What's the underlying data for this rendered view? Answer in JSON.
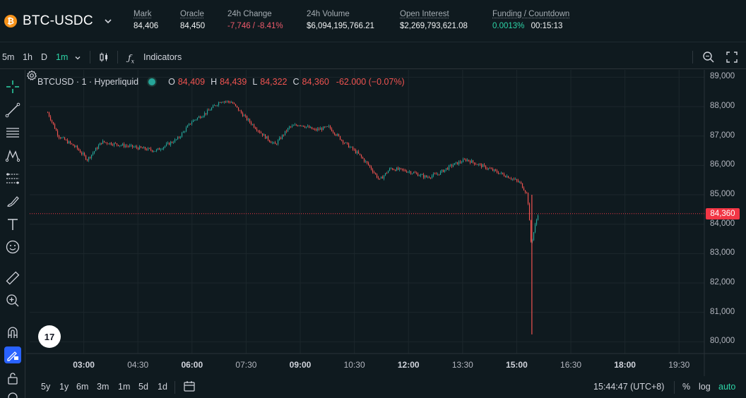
{
  "market": {
    "pair": "BTC-USDC",
    "coin_symbol": "₿",
    "stats": [
      {
        "label": "Mark",
        "value": "84,406"
      },
      {
        "label": "Oracle",
        "value": "84,450"
      },
      {
        "label": "24h Change",
        "value": "-7,746 / -8.41%"
      },
      {
        "label": "24h Volume",
        "value": "$6,094,195,766.21"
      },
      {
        "label": "Open Interest",
        "value": "$2,269,793,621.08"
      },
      {
        "label": "Funding / Countdown",
        "value": "0.0013%",
        "value2": "00:15:13"
      }
    ]
  },
  "toolbar": {
    "intervals": [
      "5m",
      "1h",
      "D",
      "1m"
    ],
    "active_interval": "1m",
    "indicators_label": "Indicators"
  },
  "legend": {
    "symbol": "BTCUSD · 1 · Hyperliquid",
    "o_key": "O",
    "o": "84,409",
    "h_key": "H",
    "h": "84,439",
    "l_key": "L",
    "l": "84,322",
    "c_key": "C",
    "c": "84,360",
    "change": "-62.000 (−0.07%)"
  },
  "chart_data": {
    "type": "candlestick",
    "title": "BTCUSD · 1 · Hyperliquid",
    "current_price_label": "84,360",
    "current_price": 84360,
    "ylim": [
      79600,
      89250
    ],
    "y_ticks": [
      "89,000",
      "88,000",
      "87,000",
      "86,000",
      "85,000",
      "84,000",
      "83,000",
      "82,000",
      "81,000",
      "80,000"
    ],
    "x_ticks": [
      {
        "label": "03:00",
        "bold": true,
        "hour": 3
      },
      {
        "label": "04:30",
        "bold": false,
        "hour": 4.5
      },
      {
        "label": "06:00",
        "bold": true,
        "hour": 6
      },
      {
        "label": "07:30",
        "bold": false,
        "hour": 7.5
      },
      {
        "label": "09:00",
        "bold": true,
        "hour": 9
      },
      {
        "label": "10:30",
        "bold": false,
        "hour": 10.5
      },
      {
        "label": "12:00",
        "bold": true,
        "hour": 12
      },
      {
        "label": "13:30",
        "bold": false,
        "hour": 13.5
      },
      {
        "label": "15:00",
        "bold": true,
        "hour": 15
      },
      {
        "label": "16:30",
        "bold": false,
        "hour": 16.5
      },
      {
        "label": "18:00",
        "bold": true,
        "hour": 18
      },
      {
        "label": "19:30",
        "bold": false,
        "hour": 19.5
      }
    ],
    "price_path": [
      [
        2.0,
        87800
      ],
      [
        2.3,
        87000
      ],
      [
        2.8,
        86600
      ],
      [
        3.1,
        86200
      ],
      [
        3.5,
        86800
      ],
      [
        4.0,
        86700
      ],
      [
        4.5,
        86600
      ],
      [
        5.0,
        86500
      ],
      [
        5.6,
        86900
      ],
      [
        6.0,
        87500
      ],
      [
        6.4,
        87800
      ],
      [
        6.8,
        88200
      ],
      [
        7.1,
        88150
      ],
      [
        7.5,
        87600
      ],
      [
        8.0,
        87000
      ],
      [
        8.3,
        86700
      ],
      [
        8.7,
        87300
      ],
      [
        9.0,
        87400
      ],
      [
        9.4,
        87200
      ],
      [
        9.8,
        87300
      ],
      [
        10.2,
        86800
      ],
      [
        10.6,
        86400
      ],
      [
        10.9,
        86000
      ],
      [
        11.2,
        85500
      ],
      [
        11.5,
        85900
      ],
      [
        12.0,
        85800
      ],
      [
        12.5,
        85600
      ],
      [
        12.8,
        85700
      ],
      [
        13.2,
        86000
      ],
      [
        13.6,
        86200
      ],
      [
        14.0,
        86000
      ],
      [
        14.4,
        85800
      ],
      [
        14.8,
        85600
      ],
      [
        15.1,
        85400
      ],
      [
        15.3,
        85000
      ],
      [
        15.4,
        83300
      ],
      [
        15.5,
        83900
      ],
      [
        15.6,
        84400
      ]
    ],
    "wick_low": 80250,
    "colors": {
      "up": "#26a69a",
      "down": "#ef5350"
    }
  },
  "bottom": {
    "ranges": [
      "5y",
      "1y",
      "6m",
      "3m",
      "1m",
      "5d",
      "1d"
    ],
    "time": "15:44:47 (UTC+8)",
    "percent": "%",
    "log": "log",
    "auto": "auto"
  },
  "tv_logo": "17"
}
